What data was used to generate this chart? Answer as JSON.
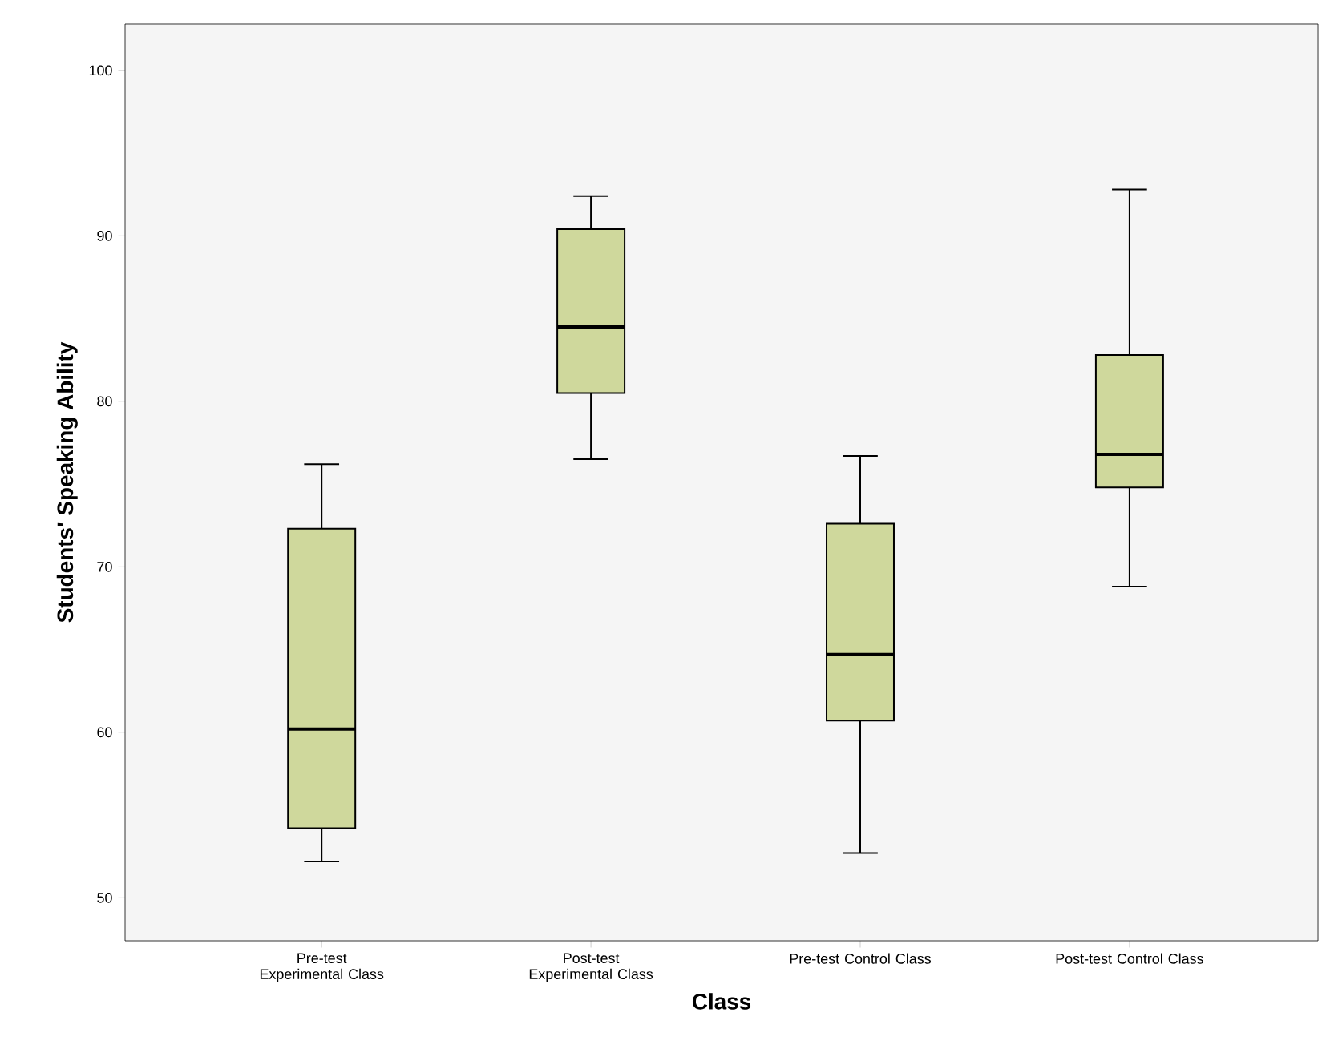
{
  "chart_data": {
    "type": "box",
    "xlabel": "Class",
    "ylabel": "Students' Speaking Ability",
    "categories": [
      "Pre-test Experimental Class",
      "Post-test Experimental Class",
      "Pre-test Control Class",
      "Post-test Control Class"
    ],
    "color": "#cfd89c",
    "boxes": [
      {
        "low": 52.2,
        "q1": 54.2,
        "median": 60.2,
        "q3": 72.3,
        "high": 76.2
      },
      {
        "low": 76.5,
        "q1": 80.5,
        "median": 84.5,
        "q3": 90.4,
        "high": 92.4
      },
      {
        "low": 52.7,
        "q1": 60.7,
        "median": 64.7,
        "q3": 72.6,
        "high": 76.7
      },
      {
        "low": 68.8,
        "q1": 74.8,
        "median": 76.8,
        "q3": 82.8,
        "high": 92.8
      }
    ],
    "ylim": [
      47.4,
      102.8
    ],
    "yticks": [
      50,
      60,
      70,
      80,
      90,
      100
    ],
    "grid": false
  }
}
